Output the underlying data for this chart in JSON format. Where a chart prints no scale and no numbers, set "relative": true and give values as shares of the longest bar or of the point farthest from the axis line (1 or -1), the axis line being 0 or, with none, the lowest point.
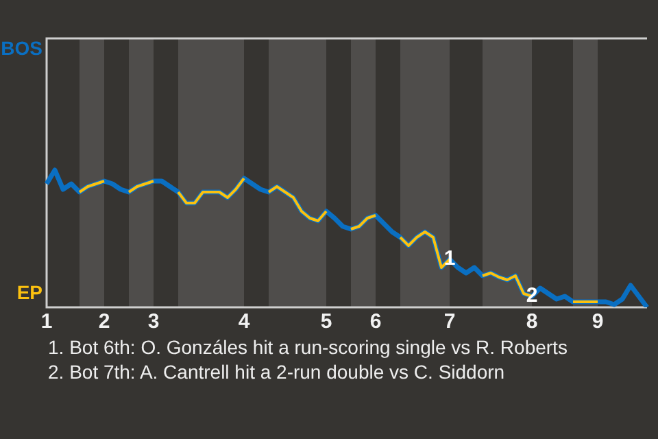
{
  "chart_data": {
    "type": "line",
    "relative": true,
    "categories": [
      "1",
      null,
      null,
      null,
      null,
      null,
      null,
      "2",
      null,
      null,
      null,
      null,
      null,
      "3",
      null,
      null,
      null,
      null,
      null,
      null,
      null,
      null,
      null,
      null,
      "4",
      null,
      null,
      null,
      null,
      null,
      null,
      null,
      null,
      null,
      "5",
      null,
      null,
      null,
      null,
      null,
      "6",
      null,
      null,
      null,
      null,
      null,
      null,
      null,
      null,
      "7",
      null,
      null,
      null,
      null,
      null,
      null,
      null,
      null,
      null,
      "8",
      null,
      null,
      null,
      null,
      null,
      null,
      null,
      "9",
      null,
      null,
      null,
      null,
      null,
      null
    ],
    "series": [
      {
        "name": "BOS",
        "color": "#0a6fc2",
        "values": [
          0.9,
          1,
          0.86,
          0.9,
          0.84,
          0.88,
          0.9,
          0.92,
          0.9,
          0.86,
          0.84,
          0.88,
          0.9,
          0.92,
          0.92,
          0.88,
          0.84,
          0.76,
          0.76,
          0.84,
          0.84,
          0.84,
          0.8,
          0.86,
          0.94,
          0.9,
          0.86,
          0.84,
          0.88,
          0.84,
          0.8,
          0.7,
          0.65,
          0.63,
          0.7,
          0.65,
          0.59,
          0.57,
          0.59,
          0.65,
          0.67,
          0.61,
          0.55,
          0.51,
          0.45,
          0.51,
          0.55,
          0.51,
          0.29,
          0.35,
          0.29,
          0.25,
          0.29,
          0.23,
          0.25,
          0.22,
          0.2,
          0.23,
          0.1,
          0.08,
          0.14,
          0.1,
          0.06,
          0.08,
          0.04,
          0.04,
          0.04,
          0.04,
          0.04,
          0.02,
          0.06,
          0.16,
          0.08,
          0
        ]
      },
      {
        "name": "EP",
        "color": "#fcc10f",
        "values": [
          null,
          null,
          null,
          null,
          0.84,
          0.88,
          0.9,
          0.92,
          null,
          null,
          0.84,
          0.88,
          0.9,
          0.92,
          null,
          null,
          0.84,
          0.76,
          0.76,
          0.84,
          0.84,
          0.84,
          0.8,
          0.86,
          0.94,
          null,
          null,
          0.84,
          0.88,
          0.84,
          0.8,
          0.7,
          0.65,
          0.63,
          0.7,
          null,
          null,
          0.57,
          0.59,
          0.65,
          0.67,
          null,
          null,
          0.51,
          0.45,
          0.51,
          0.55,
          0.51,
          0.29,
          0.35,
          null,
          null,
          null,
          0.23,
          0.25,
          0.22,
          0.2,
          0.23,
          0.1,
          0.08,
          null,
          null,
          null,
          null,
          0.04,
          0.04,
          0.04,
          0.04,
          null,
          null,
          null,
          null,
          null,
          null
        ]
      }
    ],
    "annotations": [
      {
        "text": "1",
        "x": "7",
        "y": 0.35
      },
      {
        "text": "2",
        "x": "8",
        "y": 0.08
      },
      "1. Bot 6th: O. Gonzáles hit a run-scoring single vs R. Roberts",
      "2. Bot 7th: A. Cantrell hit a 2-run double vs C. Siddorn"
    ],
    "marker": "none",
    "line_style": "solid"
  }
}
